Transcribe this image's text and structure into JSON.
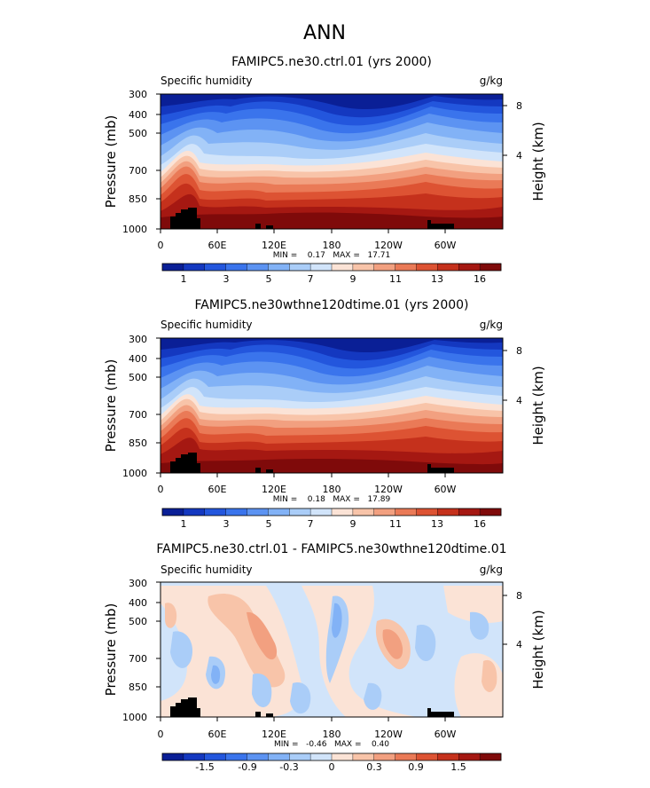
{
  "page_title": "ANN",
  "colors": {
    "abs_palette": [
      "#0a1f96",
      "#1438c0",
      "#2356dd",
      "#3a74ec",
      "#5c93f2",
      "#82b2f6",
      "#aacdf8",
      "#d1e4fa",
      "#fbe3d6",
      "#f8c4a9",
      "#f2a080",
      "#ea7a57",
      "#dd5333",
      "#c5311c",
      "#a51812",
      "#7f0a0a"
    ],
    "diff_palette": [
      "#0a1f96",
      "#1438c0",
      "#2356dd",
      "#3a74ec",
      "#5c93f2",
      "#82b2f6",
      "#aacdf8",
      "#d1e4fa",
      "#fbe3d6",
      "#f8c4a9",
      "#f2a080",
      "#ea7a57",
      "#dd5333",
      "#c5311c",
      "#a51812",
      "#7f0a0a"
    ],
    "terrain": "#000000"
  },
  "chart_data": [
    {
      "type": "heatmap",
      "title": "FAMIPC5.ne30.ctrl.01 (yrs 2000)",
      "left_label": "Specific humidity",
      "right_label": "g/kg",
      "ylabel": "Pressure (mb)",
      "y2label": "Height (km)",
      "yticks": [
        "300",
        "400",
        "500",
        "700",
        "850",
        "1000"
      ],
      "y2ticks": [
        "8",
        "4"
      ],
      "xticks": [
        "0",
        "60E",
        "120E",
        "180",
        "120W",
        "60W"
      ],
      "stats": "MIN =    0.17   MAX =   17.71",
      "colorbar_labels": [
        "1",
        "3",
        "5",
        "7",
        "9",
        "11",
        "13",
        "16"
      ]
    },
    {
      "type": "heatmap",
      "title": "FAMIPC5.ne30wthne120dtime.01 (yrs 2000)",
      "left_label": "Specific humidity",
      "right_label": "g/kg",
      "ylabel": "Pressure (mb)",
      "y2label": "Height (km)",
      "yticks": [
        "300",
        "400",
        "500",
        "700",
        "850",
        "1000"
      ],
      "y2ticks": [
        "8",
        "4"
      ],
      "xticks": [
        "0",
        "60E",
        "120E",
        "180",
        "120W",
        "60W"
      ],
      "stats": "MIN =    0.18   MAX =   17.89",
      "colorbar_labels": [
        "1",
        "3",
        "5",
        "7",
        "9",
        "11",
        "13",
        "16"
      ]
    },
    {
      "type": "heatmap",
      "title": "FAMIPC5.ne30.ctrl.01 - FAMIPC5.ne30wthne120dtime.01",
      "left_label": "Specific humidity",
      "right_label": "g/kg",
      "ylabel": "Pressure (mb)",
      "y2label": "Height (km)",
      "yticks": [
        "300",
        "400",
        "500",
        "700",
        "850",
        "1000"
      ],
      "y2ticks": [
        "8",
        "4"
      ],
      "xticks": [
        "0",
        "60E",
        "120E",
        "180",
        "120W",
        "60W"
      ],
      "stats": "MIN =   -0.46   MAX =    0.40",
      "colorbar_labels": [
        "-1.5",
        "-0.9",
        "-0.3",
        "0",
        "0.3",
        "0.9",
        "1.5"
      ]
    }
  ]
}
